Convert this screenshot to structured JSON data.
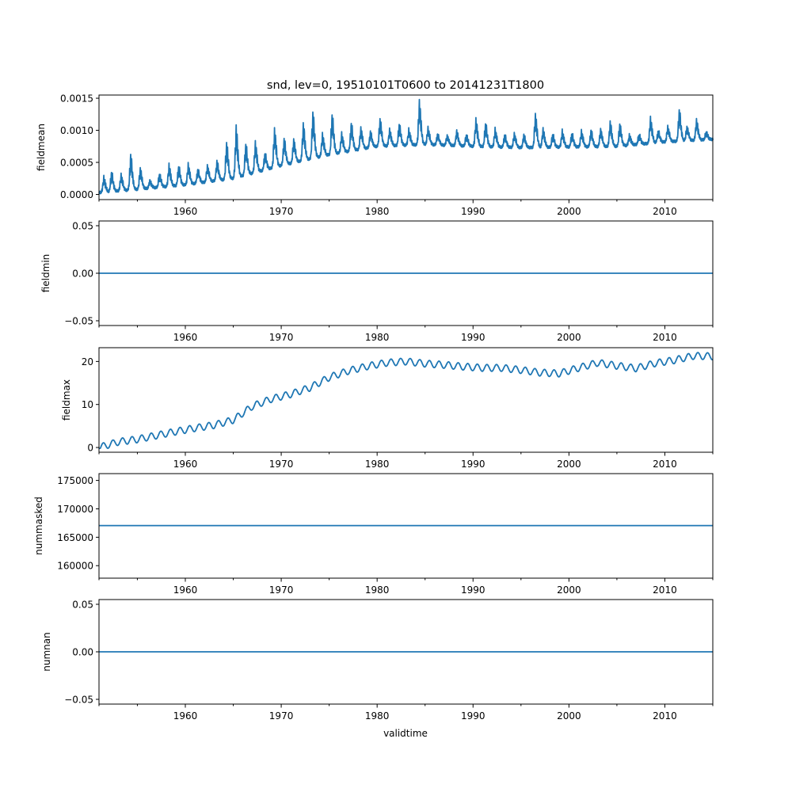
{
  "chart_data": {
    "type": "line",
    "title": "snd, lev=0, 19510101T0600 to 20141231T1800",
    "xlabel": "validtime",
    "xlim": [
      1951.0,
      2015.0
    ],
    "x_ticks": [
      1960,
      1970,
      1980,
      1990,
      2000,
      2010
    ],
    "x_tick_labels": [
      "1960",
      "1970",
      "1980",
      "1990",
      "2000",
      "2010"
    ],
    "x_minor_ticks": [
      1955,
      1965,
      1975,
      1985,
      1995,
      2005
    ],
    "line_color": "#1f77b4",
    "panels": [
      {
        "ylabel": "fieldmean",
        "ylim": [
          -8e-05,
          0.00155
        ],
        "y_ticks": [
          0.0,
          0.0005,
          0.001,
          0.0015
        ],
        "y_tick_labels": [
          "0.0000",
          "0.0005",
          "0.0010",
          "0.0015"
        ],
        "series_kind": "seasonal",
        "baseline_x": [
          1951,
          1955,
          1960,
          1965,
          1970,
          1975,
          1980,
          1985,
          1990,
          1995,
          2000,
          2005,
          2010,
          2015
        ],
        "baseline_y": [
          3e-05,
          8e-05,
          0.00015,
          0.00025,
          0.00045,
          0.00062,
          0.00075,
          0.00078,
          0.00075,
          0.00073,
          0.00074,
          0.00075,
          0.00082,
          0.00086
        ],
        "peak_years": [
          1951.5,
          1952.3,
          1953.3,
          1954.3,
          1955.3,
          1956.3,
          1957.3,
          1958.3,
          1959.3,
          1960.3,
          1961.3,
          1962.3,
          1963.3,
          1964.3,
          1965.3,
          1966.3,
          1967.3,
          1968.3,
          1969.3,
          1970.3,
          1971.3,
          1972.3,
          1973.3,
          1974.3,
          1975.3,
          1976.3,
          1977.3,
          1978.3,
          1979.3,
          1980.3,
          1981.3,
          1982.3,
          1983.3,
          1984.4,
          1985.3,
          1986.3,
          1987.3,
          1988.3,
          1989.3,
          1990.3,
          1991.3,
          1992.3,
          1993.3,
          1994.3,
          1995.3,
          1996.5,
          1997.3,
          1998.3,
          1999.3,
          2000.3,
          2001.3,
          2002.3,
          2003.3,
          2004.3,
          2005.3,
          2006.3,
          2007.3,
          2008.5,
          2009.3,
          2010.3,
          2011.5,
          2012.3,
          2013.3,
          2014.3
        ],
        "peak_values": [
          0.00028,
          0.00036,
          0.00032,
          0.00063,
          0.00042,
          0.00022,
          0.00033,
          0.00047,
          0.00045,
          0.00048,
          0.0004,
          0.00046,
          0.00053,
          0.00082,
          0.00107,
          0.0008,
          0.00082,
          0.00065,
          0.00103,
          0.00088,
          0.00087,
          0.00111,
          0.0013,
          0.00095,
          0.00126,
          0.00096,
          0.00112,
          0.00105,
          0.00099,
          0.00119,
          0.00102,
          0.00111,
          0.00102,
          0.00146,
          0.00105,
          0.00095,
          0.00093,
          0.001,
          0.00094,
          0.00118,
          0.00112,
          0.00103,
          0.00094,
          0.00096,
          0.00094,
          0.00126,
          0.00103,
          0.00095,
          0.001,
          0.00096,
          0.001,
          0.00101,
          0.00103,
          0.00114,
          0.00111,
          0.00093,
          0.00094,
          0.0012,
          0.001,
          0.00107,
          0.00133,
          0.00107,
          0.00117,
          0.00098
        ]
      },
      {
        "ylabel": "fieldmin",
        "ylim": [
          -0.055,
          0.055
        ],
        "y_ticks": [
          -0.05,
          0.0,
          0.05
        ],
        "y_tick_labels": [
          "−0.05",
          "0.00",
          "0.05"
        ],
        "series_kind": "constant",
        "constant_value": 0.0
      },
      {
        "ylabel": "fieldmax",
        "ylim": [
          -1.1,
          23.2
        ],
        "y_ticks": [
          0,
          10,
          20
        ],
        "y_tick_labels": [
          "0",
          "10",
          "20"
        ],
        "series_kind": "smooth",
        "trend_x": [
          1951,
          1953,
          1955,
          1957,
          1959,
          1961,
          1963,
          1965,
          1967,
          1969,
          1971,
          1973,
          1975,
          1977,
          1979,
          1981,
          1983,
          1985,
          1987,
          1989,
          1991,
          1993,
          1995,
          1997,
          1999,
          2001,
          2003,
          2005,
          2007,
          2009,
          2011,
          2013,
          2015
        ],
        "trend_y": [
          0.0,
          1.3,
          1.9,
          2.8,
          3.7,
          4.5,
          5.2,
          6.4,
          9.6,
          11.3,
          12.4,
          13.9,
          16.3,
          17.8,
          18.9,
          19.7,
          20.0,
          19.5,
          19.2,
          18.8,
          18.5,
          18.5,
          18.0,
          17.4,
          17.2,
          18.5,
          19.7,
          19.0,
          18.4,
          19.6,
          20.3,
          21.3,
          21.2
        ],
        "amplitude": 0.8
      },
      {
        "ylabel": "nummasked",
        "ylim": [
          157800,
          176200
        ],
        "y_ticks": [
          160000,
          165000,
          170000,
          175000
        ],
        "y_tick_labels": [
          "160000",
          "165000",
          "170000",
          "175000"
        ],
        "series_kind": "constant",
        "constant_value": 167050
      },
      {
        "ylabel": "numnan",
        "ylim": [
          -0.055,
          0.055
        ],
        "y_ticks": [
          -0.05,
          0.0,
          0.05
        ],
        "y_tick_labels": [
          "−0.05",
          "0.00",
          "0.05"
        ],
        "series_kind": "constant",
        "constant_value": 0.0
      }
    ]
  }
}
